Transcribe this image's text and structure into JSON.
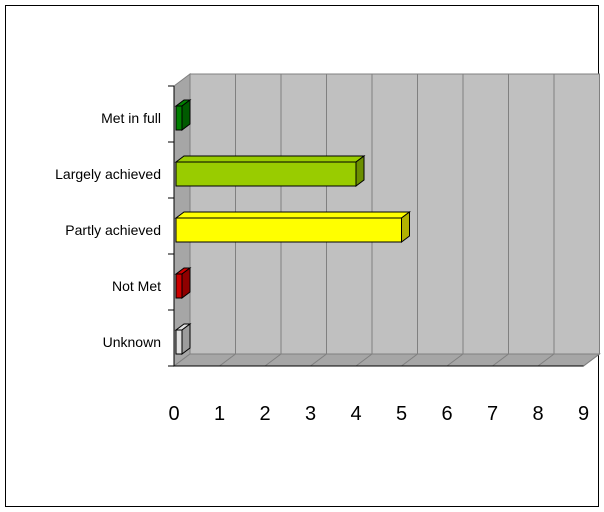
{
  "chart_data": {
    "type": "bar",
    "orientation": "horizontal",
    "style": "3d",
    "categories": [
      "Met in full",
      "Largely achieved",
      "Partly achieved",
      "Not Met",
      "Unknown"
    ],
    "values": [
      0,
      4,
      5,
      0,
      0
    ],
    "bar_colors": [
      "#008000",
      "#99cc00",
      "#ffff00",
      "#cc0000",
      "#e0e0e0"
    ],
    "xlim": [
      0,
      9
    ],
    "x_ticks": [
      "0",
      "1",
      "2",
      "3",
      "4",
      "5",
      "6",
      "7",
      "8",
      "9"
    ],
    "grid": true,
    "plot_background": "#c0c0c0",
    "legend": "none"
  }
}
